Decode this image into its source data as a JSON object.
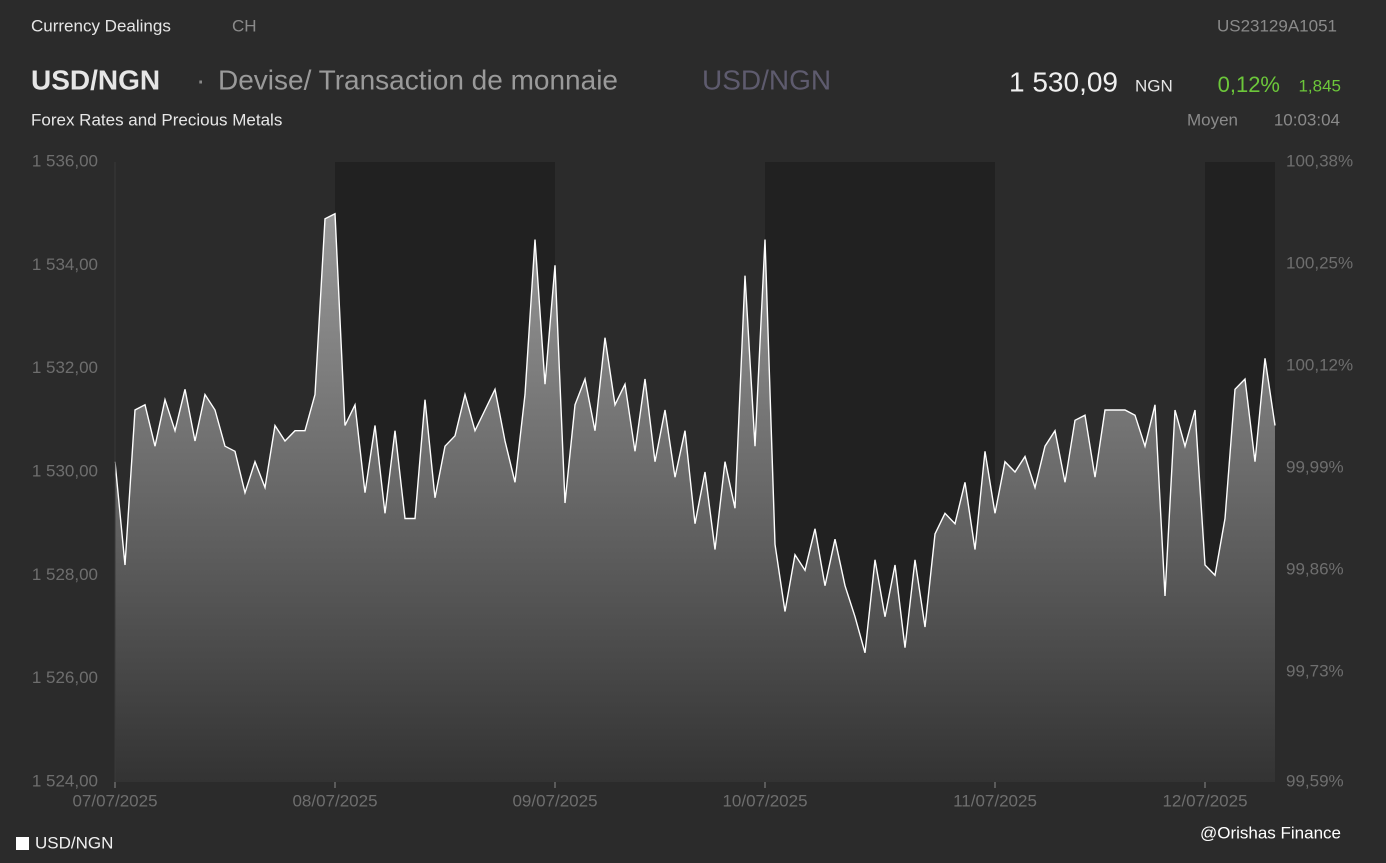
{
  "header": {
    "source": "Currency Dealings",
    "market": "CH",
    "isin": "US23129A1051",
    "symbol": "USD/NGN",
    "separator": "·",
    "description": "Devise/ Transaction de monnaie",
    "symbol_secondary": "USD/NGN",
    "price": "1 530,09",
    "currency": "NGN",
    "change_pct": "0,12%",
    "change_abs": "1,845",
    "category": "Forex Rates and Precious Metals",
    "quote_type": "Moyen",
    "time": "10:03:04"
  },
  "credit": "@Orishas Finance",
  "chart_data": {
    "type": "area",
    "categories": [
      "07/07/2025",
      null,
      null,
      null,
      null,
      null,
      null,
      null,
      null,
      null,
      null,
      null,
      null,
      null,
      null,
      null,
      null,
      null,
      null,
      null,
      null,
      null,
      "08/07/2025",
      null,
      null,
      null,
      null,
      null,
      null,
      null,
      null,
      null,
      null,
      null,
      null,
      null,
      null,
      null,
      null,
      null,
      null,
      null,
      null,
      null,
      "09/07/2025",
      null,
      null,
      null,
      null,
      null,
      null,
      null,
      null,
      null,
      null,
      null,
      null,
      null,
      null,
      null,
      null,
      null,
      null,
      null,
      null,
      "10/07/2025",
      null,
      null,
      null,
      null,
      null,
      null,
      null,
      null,
      null,
      null,
      null,
      null,
      null,
      null,
      null,
      null,
      null,
      null,
      null,
      null,
      null,
      null,
      "11/07/2025",
      null,
      null,
      null,
      null,
      null,
      null,
      null,
      null,
      null,
      null,
      null,
      null,
      null,
      null,
      null,
      null,
      null,
      null,
      null,
      null,
      "12/07/2025",
      null,
      null,
      null,
      null,
      null,
      null,
      null
    ],
    "series": [
      {
        "name": "USD/NGN",
        "color": "#ffffff",
        "values": [
          1530.2,
          1528.2,
          1531.2,
          1531.3,
          1530.5,
          1531.4,
          1530.8,
          1531.6,
          1530.6,
          1531.5,
          1531.2,
          1530.5,
          1530.4,
          1529.6,
          1530.2,
          1529.7,
          1530.9,
          1530.6,
          1530.8,
          1530.8,
          1531.5,
          1534.9,
          1535.0,
          1530.9,
          1531.3,
          1529.6,
          1530.9,
          1529.2,
          1530.8,
          1529.1,
          1529.1,
          1531.4,
          1529.5,
          1530.5,
          1530.7,
          1531.5,
          1530.8,
          1531.2,
          1531.6,
          1530.6,
          1529.8,
          1531.5,
          1534.5,
          1531.7,
          1534.0,
          1529.4,
          1531.3,
          1531.8,
          1530.8,
          1532.6,
          1531.3,
          1531.7,
          1530.4,
          1531.8,
          1530.2,
          1531.2,
          1529.9,
          1530.8,
          1529.0,
          1530.0,
          1528.5,
          1530.2,
          1529.3,
          1533.8,
          1530.5,
          1534.5,
          1528.6,
          1527.3,
          1528.4,
          1528.1,
          1528.9,
          1527.8,
          1528.7,
          1527.8,
          1527.2,
          1526.5,
          1528.3,
          1527.2,
          1528.2,
          1526.6,
          1528.3,
          1527.0,
          1528.8,
          1529.2,
          1529.0,
          1529.8,
          1528.5,
          1530.4,
          1529.2,
          1530.2,
          1530.0,
          1530.3,
          1529.7,
          1530.5,
          1530.8,
          1529.8,
          1531.0,
          1531.1,
          1529.9,
          1531.2,
          1531.2,
          1531.2,
          1531.1,
          1530.5,
          1531.3,
          1527.6,
          1531.2,
          1530.5,
          1531.2,
          1528.2,
          1528.0,
          1529.1,
          1531.6,
          1531.8,
          1530.2,
          1532.2,
          1530.9
        ]
      }
    ],
    "ylim": [
      1524,
      1536
    ],
    "yticks": [
      {
        "value": 1536,
        "label": "1 536,00"
      },
      {
        "value": 1534,
        "label": "1 534,00"
      },
      {
        "value": 1532,
        "label": "1 532,00"
      },
      {
        "value": 1530,
        "label": "1 530,00"
      },
      {
        "value": 1528,
        "label": "1 528,00"
      },
      {
        "value": 1526,
        "label": "1 526,00"
      },
      {
        "value": 1524,
        "label": "1 524,00"
      }
    ],
    "y2lim": [
      99.59,
      100.38
    ],
    "y2ticks": [
      {
        "value": 100.38,
        "label": "100,38%"
      },
      {
        "value": 100.25,
        "label": "100,25%"
      },
      {
        "value": 100.12,
        "label": "100,12%"
      },
      {
        "value": 99.99,
        "label": "99,99%"
      },
      {
        "value": 99.86,
        "label": "99,86%"
      },
      {
        "value": 99.73,
        "label": "99,73%"
      },
      {
        "value": 99.59,
        "label": "99,59%"
      }
    ],
    "grid": false
  }
}
